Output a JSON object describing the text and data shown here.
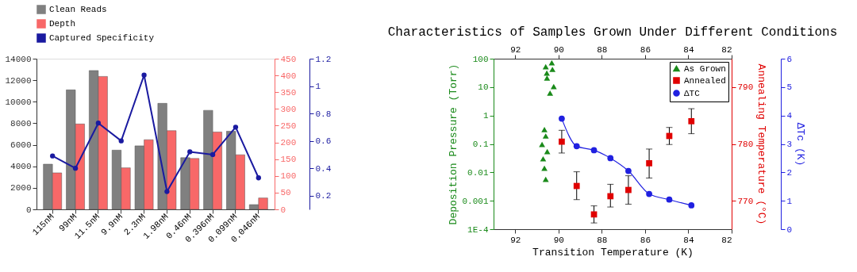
{
  "chart_data": [
    {
      "type": "bar",
      "categories": [
        "115nM",
        "99nM",
        "11.5nM",
        "9.9nM",
        "2.3nM",
        "1.98nM",
        "0.46nM",
        "0.396nM",
        "0.099nM",
        "0.046nM"
      ],
      "ylim": [
        0,
        14000
      ],
      "yticks": [
        0,
        2000,
        4000,
        6000,
        8000,
        10000,
        12000,
        14000
      ],
      "y2lim": [
        0,
        450
      ],
      "y2ticks": [
        0,
        50,
        100,
        150,
        200,
        250,
        300,
        350,
        400,
        450
      ],
      "y3lim": [
        0.1,
        1.2
      ],
      "y3ticks": [
        0.2,
        0.4,
        0.6,
        0.8,
        1,
        1.2
      ],
      "legend": "top left",
      "grid": false,
      "series": [
        {
          "name": "Clean Reads",
          "color": "#808080",
          "values": [
            4200,
            11100,
            12900,
            5500,
            5900,
            9850,
            4800,
            9200,
            7260,
            440
          ]
        },
        {
          "name": "Depth",
          "color": "#f86868",
          "axis": "y2",
          "values": [
            109,
            255,
            397,
            124,
            208,
            235,
            152,
            231,
            163,
            34
          ]
        },
        {
          "name": "Captured Specificity",
          "color": "#1a1aa0",
          "type": "line",
          "marker": "circle",
          "axis": "y3",
          "values": [
            0.49,
            0.4,
            0.73,
            0.6,
            1.08,
            0.23,
            0.52,
            0.5,
            0.7,
            0.33
          ]
        }
      ]
    },
    {
      "type": "scatter",
      "title": "Characteristics of Samples Grown Under Different Conditions",
      "xlabel": "Transition Temperature (K)",
      "ylabel": "Deposition Pressure (Torr)",
      "y2label": "Annealing Temperature (°C)",
      "y3label": "ΔTc (K)",
      "xlim": [
        93,
        82
      ],
      "xticks": [
        92,
        90,
        88,
        86,
        84,
        82
      ],
      "x2lim": [
        93,
        82
      ],
      "x2ticks": [
        92,
        90,
        88,
        86,
        84,
        82
      ],
      "log": "y",
      "ylim": [
        0.0001,
        100
      ],
      "yticks": [
        {
          "value": 0.0001,
          "label": "1E-4"
        },
        0.001,
        0.01,
        0.1,
        1,
        10,
        100
      ],
      "y2lim": [
        765,
        795
      ],
      "y2ticks": [
        770,
        780,
        790
      ],
      "y3lim": [
        0,
        6
      ],
      "y3ticks": [
        0,
        1,
        2,
        3,
        4,
        5,
        6
      ],
      "legend": "top right",
      "grid": false,
      "series": [
        {
          "name": "As Grown",
          "color": "#1a8a1a",
          "marker": "triangle",
          "x": [
            90.31,
            90.59,
            90.28,
            90.54,
            90.53,
            90.22,
            90.39,
            90.65,
            90.59,
            90.76,
            90.52,
            90.71,
            90.65,
            90.59
          ],
          "values": [
            72,
            52,
            42,
            31,
            21,
            10.4,
            6.2,
            0.32,
            0.19,
            0.096,
            0.054,
            0.03,
            0.014,
            0.0057
          ]
        },
        {
          "name": "Annealed",
          "color": "#e00000",
          "marker": "square",
          "axis": "y2",
          "x": [
            89.85,
            89.16,
            88.36,
            87.6,
            86.77,
            85.81,
            84.88,
            83.86
          ],
          "values": [
            780.4,
            772.6,
            767.6,
            770.8,
            771.9,
            776.6,
            781.4,
            784.0
          ],
          "errors": [
            [
              778.4,
              782.4
            ],
            [
              770.2,
              775.1
            ],
            [
              766.1,
              769.1
            ],
            [
              768.9,
              772.9
            ],
            [
              769.4,
              774.4
            ],
            [
              774.0,
              779.1
            ],
            [
              779.9,
              782.9
            ],
            [
              781.8,
              786.2
            ]
          ]
        },
        {
          "name": "ΔTC",
          "color": "#2020e0",
          "type": "line",
          "marker": "circle",
          "axis": "y3",
          "x": [
            89.85,
            89.16,
            88.36,
            87.6,
            86.77,
            85.81,
            84.88,
            83.86
          ],
          "values": [
            3.89,
            2.92,
            2.78,
            2.5,
            2.05,
            1.24,
            1.04,
            0.84
          ]
        }
      ]
    }
  ]
}
